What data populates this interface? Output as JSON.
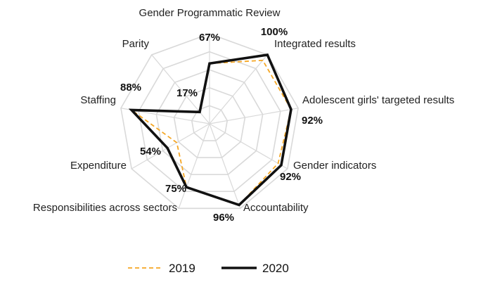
{
  "chart_data": {
    "type": "radar",
    "categories": [
      "Gender Programmatic Review",
      "Integrated results",
      "Adolescent girls' targeted results",
      "Gender indicators",
      "Accountability",
      "Responsibilities across sectors",
      "Expenditure",
      "Staffing",
      "Parity"
    ],
    "series": [
      {
        "name": "2019",
        "values": [
          67,
          92,
          92,
          88,
          96,
          75,
          42,
          88,
          17
        ],
        "color": "#F5A623",
        "style": "dashed"
      },
      {
        "name": "2020",
        "values": [
          67,
          100,
          92,
          92,
          96,
          75,
          54,
          88,
          17
        ],
        "color": "#111111",
        "style": "solid"
      }
    ],
    "data_labels": [
      "67%",
      "100%",
      "92%",
      "92%",
      "96%",
      "75%",
      "54%",
      "88%",
      "17%"
    ],
    "rlim": [
      0,
      100
    ],
    "grid_rings": 5,
    "grid": true,
    "legend": {
      "position": "bottom",
      "entries": [
        "2019",
        "2020"
      ]
    }
  }
}
